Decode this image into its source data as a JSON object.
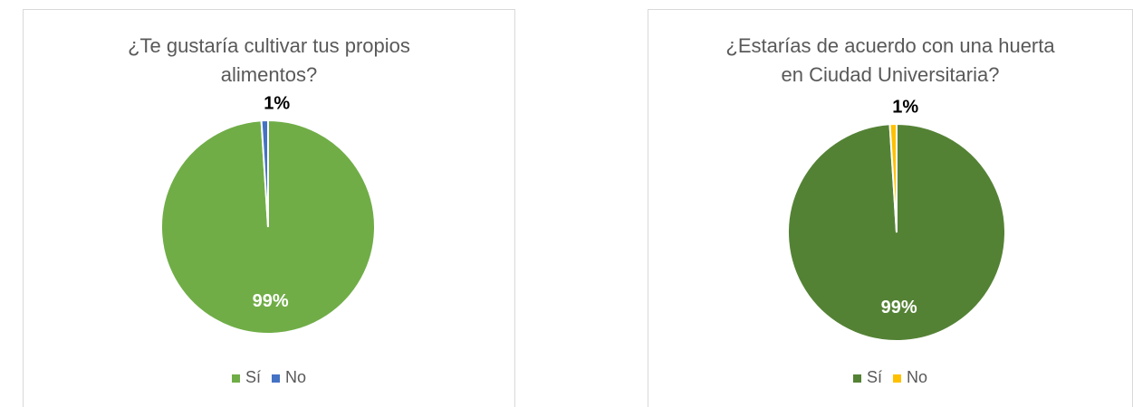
{
  "chart_data": [
    {
      "type": "pie",
      "title": "¿Te gustaría cultivar tus propios alimentos?",
      "categories": [
        "Sí",
        "No"
      ],
      "values": [
        99,
        1
      ],
      "value_labels": [
        "99%",
        "1%"
      ],
      "colors": [
        "#70ad47",
        "#4472c4"
      ],
      "legend": "bottom"
    },
    {
      "type": "pie",
      "title": "¿Estarías de acuerdo con una huerta en Ciudad Universitaria?",
      "categories": [
        "Sí",
        "No"
      ],
      "values": [
        99,
        1
      ],
      "value_labels": [
        "99%",
        "1%"
      ],
      "colors": [
        "#548235",
        "#ffc000"
      ],
      "legend": "bottom"
    }
  ]
}
